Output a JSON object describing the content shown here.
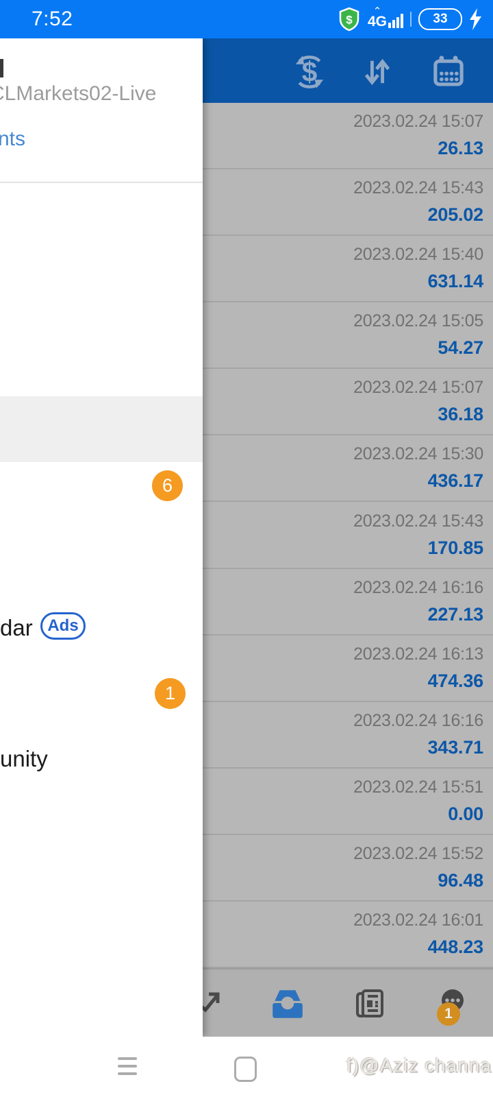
{
  "status_bar": {
    "time": "7:52",
    "network": "4G",
    "battery_percent": "33",
    "icons": [
      "security-shield-dollar-icon",
      "signal-bars-icon",
      "battery-icon",
      "charging-bolt-icon"
    ]
  },
  "header": {
    "icons": [
      {
        "name": "currency-exchange-icon"
      },
      {
        "name": "sort-arrows-icon"
      },
      {
        "name": "calendar-icon"
      }
    ]
  },
  "drawer": {
    "server_fragment": "CLMarkets02-Live",
    "manage_accounts_fragment": "nts",
    "mailbox_badge_count": "6",
    "calendar_item_fragment": "dar",
    "ads_badge_label": "Ads",
    "messages_badge_count": "1",
    "community_item_fragment": "unity"
  },
  "history": {
    "rows": [
      {
        "datetime": "2023.02.24 15:07",
        "value": "26.13"
      },
      {
        "datetime": "2023.02.24 15:43",
        "value": "205.02"
      },
      {
        "datetime": "2023.02.24 15:40",
        "value": "631.14"
      },
      {
        "datetime": "2023.02.24 15:05",
        "value": "54.27"
      },
      {
        "datetime": "2023.02.24 15:07",
        "value": "36.18"
      },
      {
        "datetime": "2023.02.24 15:30",
        "value": "436.17"
      },
      {
        "datetime": "2023.02.24 15:43",
        "value": "170.85"
      },
      {
        "datetime": "2023.02.24 16:16",
        "value": "227.13"
      },
      {
        "datetime": "2023.02.24 16:13",
        "value": "474.36"
      },
      {
        "datetime": "2023.02.24 16:16",
        "value": "343.71"
      },
      {
        "datetime": "2023.02.24 15:51",
        "value": "0.00"
      },
      {
        "datetime": "2023.02.24 15:52",
        "value": "96.48"
      },
      {
        "datetime": "2023.02.24 16:01",
        "value": "448.23"
      }
    ]
  },
  "tab_bar": {
    "tabs": [
      {
        "name": "trade",
        "icon": "trend-arrow-icon"
      },
      {
        "name": "history",
        "icon": "inbox-tray-icon",
        "active": true
      },
      {
        "name": "news",
        "icon": "newspaper-icon"
      },
      {
        "name": "chat",
        "icon": "chat-bubble-icon",
        "badge_count": "1"
      }
    ]
  },
  "nav_bar": {
    "watermark": "f)@Aziz channa"
  },
  "colors": {
    "status_bar_blue": "#0779F5",
    "header_blue_dimmed": "#0A55A6",
    "list_bg_dimmed": "#B7B7B7",
    "value_blue": "#0C57A8",
    "link_blue": "#4688D2",
    "ads_blue": "#2464CE",
    "badge_orange": "#F59B22",
    "active_tab_blue": "#2D72BE",
    "chat_badge_orange": "#D28E1F",
    "shield_green": "#3BB54A"
  }
}
